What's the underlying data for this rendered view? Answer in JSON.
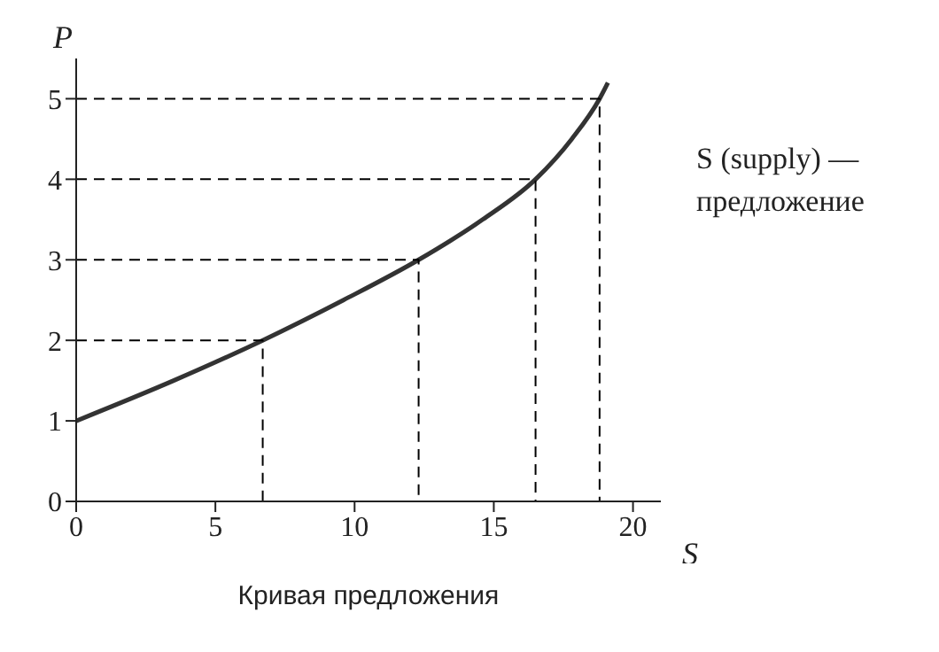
{
  "chart_data": {
    "type": "line",
    "xlabel": "S",
    "ylabel": "P",
    "xlim": [
      0,
      21
    ],
    "ylim": [
      0,
      5.5
    ],
    "xticks": [
      0,
      5,
      10,
      15,
      20
    ],
    "yticks": [
      0,
      1,
      2,
      3,
      4,
      5
    ],
    "marker": "none",
    "series": [
      {
        "color": "#333333",
        "line_style": "solid",
        "x": [
          0,
          3.5,
          6.7,
          9.6,
          12.3,
          14.6,
          16.5,
          17.8,
          18.8,
          19.1
        ],
        "values": [
          1,
          1.5,
          2,
          2.5,
          3,
          3.5,
          4,
          4.5,
          5,
          5.2
        ]
      },
      {
        "color": "#000000",
        "line_style": "dashed",
        "x": [
          0,
          6.7,
          6.7
        ],
        "values": [
          2,
          2,
          0
        ]
      },
      {
        "color": "#000000",
        "line_style": "dashed",
        "x": [
          0,
          12.3,
          12.3
        ],
        "values": [
          3,
          3,
          0
        ]
      },
      {
        "color": "#000000",
        "line_style": "dashed",
        "x": [
          0,
          16.5,
          16.5
        ],
        "values": [
          4,
          4,
          0
        ]
      },
      {
        "color": "#000000",
        "line_style": "dashed",
        "x": [
          0,
          18.8,
          18.8
        ],
        "values": [
          5,
          5,
          0
        ]
      }
    ],
    "annotations": [
      "S (supply) — предложение",
      "Кривая предложения"
    ]
  }
}
